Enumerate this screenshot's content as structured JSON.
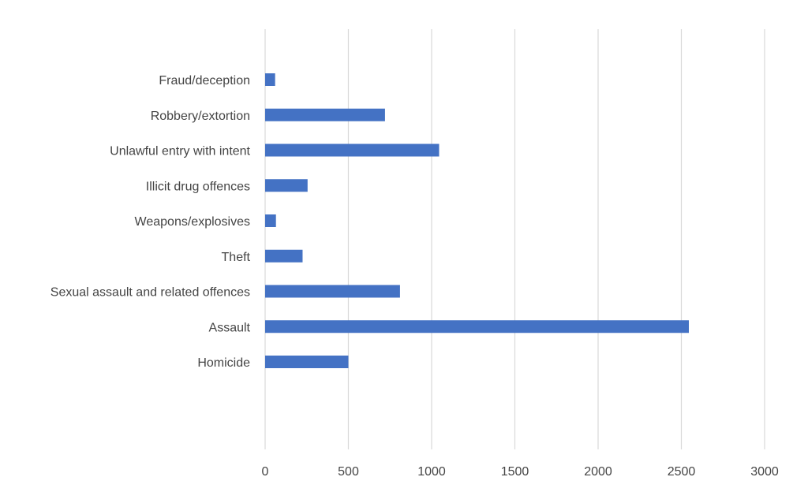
{
  "chart_data": {
    "type": "bar",
    "orientation": "horizontal",
    "title": "",
    "xlabel": "",
    "ylabel": "",
    "categories": [
      "Fraud/deception",
      "Robbery/extortion",
      "Unlawful entry with intent",
      "Illicit drug offences",
      "Weapons/explosives",
      "Theft",
      "Sexual assault and related offences",
      "Assault",
      "Homicide"
    ],
    "series": [
      {
        "values": [
          60,
          720,
          1045,
          255,
          65,
          225,
          810,
          2545,
          500
        ],
        "color": "#4472c4"
      }
    ],
    "xlim": [
      0,
      3000
    ],
    "ticks": [
      "0",
      "500",
      "1000",
      "1500",
      "2000",
      "2500",
      "3000"
    ],
    "grid": true,
    "legend": "none"
  }
}
